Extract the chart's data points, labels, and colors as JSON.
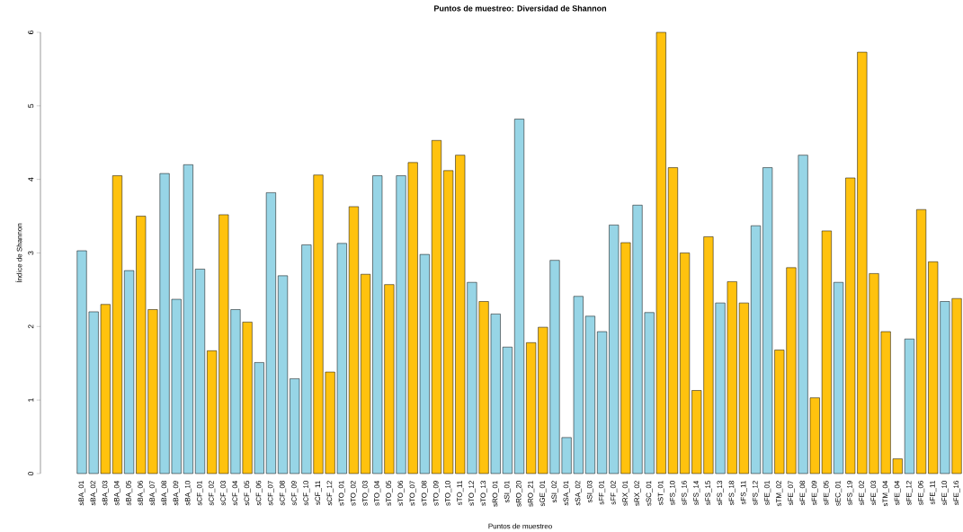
{
  "chart_data": {
    "type": "bar",
    "title": "Puntos de muestreo: Diversidad de Shannon",
    "xlabel": "Puntos de muestreo",
    "ylabel": "Índice de Shannon",
    "categories": [
      "sBA_01",
      "sBA_02",
      "sBA_03",
      "sBA_04",
      "sBA_05",
      "sBA_06",
      "sBA_07",
      "sBA_08",
      "sBA_09",
      "sBA_10",
      "sCF_01",
      "sCF_02",
      "sCF_03",
      "sCF_04",
      "sCF_05",
      "sCF_06",
      "sCF_07",
      "sCF_08",
      "sCF_09",
      "sCF_10",
      "sCF_11",
      "sCF_12",
      "sTO_01",
      "sTO_02",
      "sTO_03",
      "sTO_04",
      "sTO_05",
      "sTO_06",
      "sTO_07",
      "sTO_08",
      "sTO_09",
      "sTO_10",
      "sTO_11",
      "sTO_12",
      "sTO_13",
      "sRO_01",
      "sSI_01",
      "sRO_20",
      "sRO_21",
      "sGE_01",
      "sSI_02",
      "sSA_01",
      "sSA_02",
      "sSI_03",
      "sFF_01",
      "sFF_02",
      "sRX_01",
      "sRX_02",
      "sSC_01",
      "sST_01",
      "sFS_10",
      "sFS_16",
      "sFS_14",
      "sFS_15",
      "sFS_13",
      "sFS_18",
      "sFS_11",
      "sFS_12",
      "sFE_01",
      "sTM_02",
      "sFE_07",
      "sFE_08",
      "sFE_09",
      "sFE_05",
      "sEC_01",
      "sFS_19",
      "sFE_02",
      "sFE_03",
      "sTM_04",
      "sFE_04",
      "sFE_12",
      "sFE_06",
      "sFE_11",
      "sFE_10",
      "sFE_16"
    ],
    "values": [
      3.03,
      2.2,
      2.3,
      4.05,
      2.76,
      3.5,
      2.23,
      4.08,
      2.37,
      4.2,
      2.78,
      1.67,
      3.52,
      2.23,
      2.06,
      1.51,
      3.82,
      2.69,
      1.29,
      3.11,
      4.06,
      1.38,
      3.13,
      3.63,
      2.71,
      4.05,
      2.57,
      4.05,
      4.23,
      2.98,
      4.53,
      4.12,
      4.33,
      2.6,
      2.34,
      2.17,
      1.72,
      4.82,
      1.78,
      1.99,
      2.9,
      0.49,
      2.41,
      2.14,
      1.93,
      3.38,
      3.14,
      3.65,
      2.19,
      6.0,
      4.16,
      3.0,
      1.13,
      3.22,
      2.32,
      2.61,
      2.32,
      3.37,
      4.16,
      1.68,
      2.8,
      4.33,
      1.03,
      3.3,
      2.6,
      4.02,
      5.73,
      2.72,
      1.93,
      0.2,
      1.83,
      3.59,
      2.88,
      2.34,
      2.38
    ],
    "colors": [
      "#97d5e6",
      "#97d5e6",
      "#ffc20e",
      "#ffc20e",
      "#97d5e6",
      "#ffc20e",
      "#ffc20e",
      "#97d5e6",
      "#97d5e6",
      "#97d5e6",
      "#97d5e6",
      "#ffc20e",
      "#ffc20e",
      "#97d5e6",
      "#ffc20e",
      "#97d5e6",
      "#97d5e6",
      "#97d5e6",
      "#97d5e6",
      "#97d5e6",
      "#ffc20e",
      "#ffc20e",
      "#97d5e6",
      "#ffc20e",
      "#ffc20e",
      "#97d5e6",
      "#ffc20e",
      "#97d5e6",
      "#ffc20e",
      "#97d5e6",
      "#ffc20e",
      "#ffc20e",
      "#ffc20e",
      "#97d5e6",
      "#ffc20e",
      "#97d5e6",
      "#97d5e6",
      "#97d5e6",
      "#ffc20e",
      "#ffc20e",
      "#97d5e6",
      "#97d5e6",
      "#97d5e6",
      "#97d5e6",
      "#97d5e6",
      "#97d5e6",
      "#ffc20e",
      "#97d5e6",
      "#97d5e6",
      "#ffc20e",
      "#ffc20e",
      "#ffc20e",
      "#ffc20e",
      "#ffc20e",
      "#97d5e6",
      "#ffc20e",
      "#ffc20e",
      "#97d5e6",
      "#97d5e6",
      "#ffc20e",
      "#ffc20e",
      "#97d5e6",
      "#ffc20e",
      "#ffc20e",
      "#97d5e6",
      "#ffc20e",
      "#ffc20e",
      "#ffc20e",
      "#ffc20e",
      "#ffc20e",
      "#97d5e6",
      "#ffc20e",
      "#ffc20e",
      "#97d5e6",
      "#ffc20e"
    ],
    "ylim": [
      0,
      6
    ],
    "yticks": [
      0,
      1,
      2,
      3,
      4,
      5,
      6
    ]
  }
}
